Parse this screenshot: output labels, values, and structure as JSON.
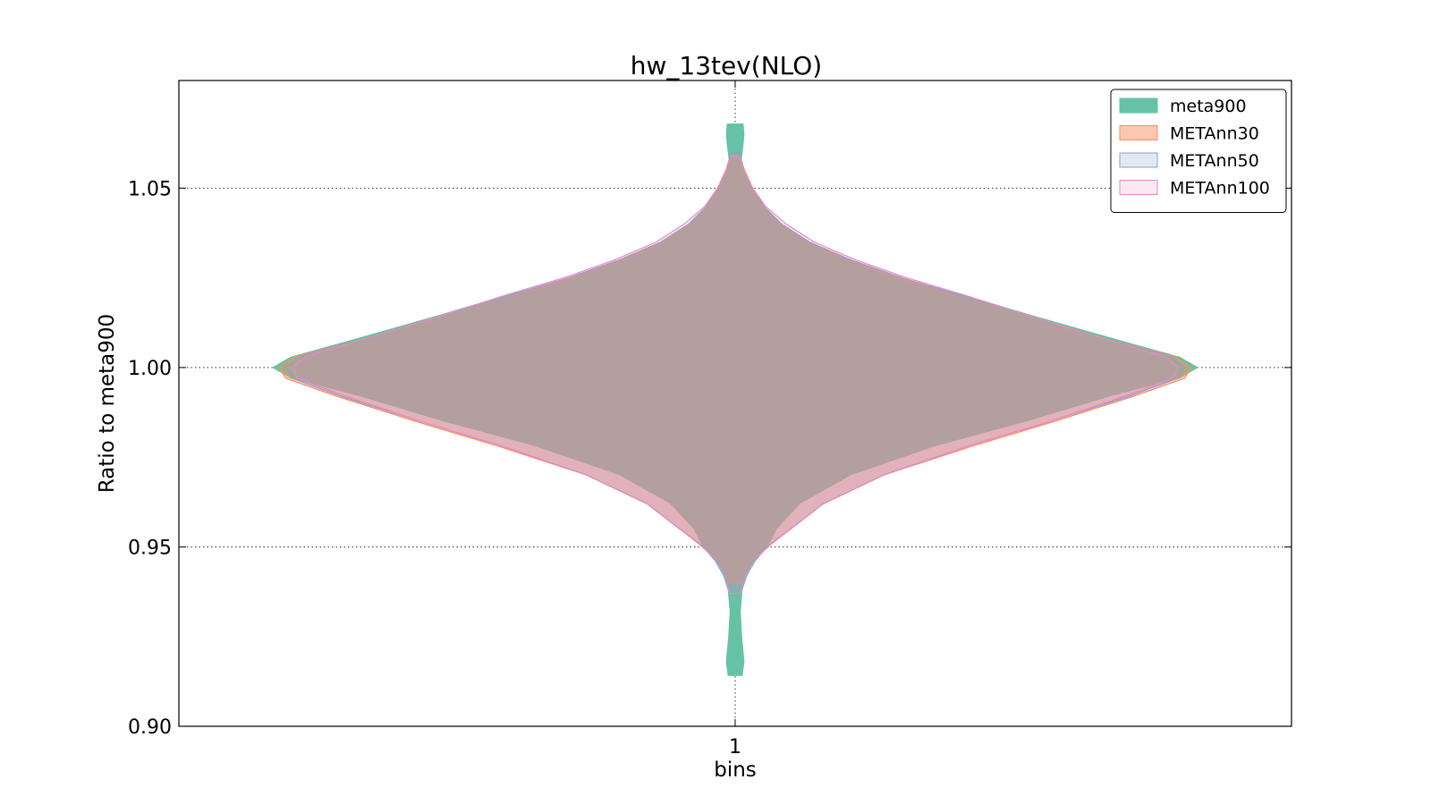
{
  "chart_data": {
    "type": "violin",
    "title": "hw_13tev(NLO)",
    "xlabel": "bins",
    "ylabel": "Ratio to meta900",
    "categories": [
      "1"
    ],
    "ylim": [
      0.9,
      1.08
    ],
    "yticks": [
      0.9,
      0.95,
      1.0,
      1.05
    ],
    "ytick_labels": [
      "0.90",
      "0.95",
      "1.00",
      "1.05"
    ],
    "grid": true,
    "legend_position": "top-right",
    "series": [
      {
        "name": "meta900",
        "color": "#66c2a5",
        "fill_opacity": 1.0,
        "y_min": 0.914,
        "y_max": 1.068,
        "profile": [
          [
            0.914,
            0.016
          ],
          [
            0.918,
            0.02
          ],
          [
            0.925,
            0.015
          ],
          [
            0.932,
            0.012
          ],
          [
            0.938,
            0.016
          ],
          [
            0.942,
            0.026
          ],
          [
            0.946,
            0.044
          ],
          [
            0.95,
            0.07
          ],
          [
            0.955,
            0.09
          ],
          [
            0.962,
            0.14
          ],
          [
            0.97,
            0.25
          ],
          [
            0.978,
            0.43
          ],
          [
            0.985,
            0.63
          ],
          [
            0.992,
            0.81
          ],
          [
            0.997,
            0.96
          ],
          [
            1.0,
            1.0
          ],
          [
            1.003,
            0.96
          ],
          [
            1.008,
            0.82
          ],
          [
            1.015,
            0.63
          ],
          [
            1.02,
            0.5
          ],
          [
            1.025,
            0.36
          ],
          [
            1.03,
            0.25
          ],
          [
            1.035,
            0.16
          ],
          [
            1.04,
            0.1
          ],
          [
            1.045,
            0.06
          ],
          [
            1.05,
            0.035
          ],
          [
            1.055,
            0.02
          ],
          [
            1.058,
            0.014
          ],
          [
            1.062,
            0.018
          ],
          [
            1.065,
            0.02
          ],
          [
            1.068,
            0.018
          ]
        ]
      },
      {
        "name": "METAnn30",
        "color": "#fc8d62",
        "fill_opacity": 0.5,
        "y_min": 0.94,
        "y_max": 1.059,
        "profile": [
          [
            0.94,
            0.015
          ],
          [
            0.944,
            0.025
          ],
          [
            0.948,
            0.05
          ],
          [
            0.952,
            0.09
          ],
          [
            0.956,
            0.13
          ],
          [
            0.962,
            0.19
          ],
          [
            0.97,
            0.32
          ],
          [
            0.978,
            0.51
          ],
          [
            0.985,
            0.69
          ],
          [
            0.992,
            0.86
          ],
          [
            0.997,
            0.97
          ],
          [
            1.0,
            0.985
          ],
          [
            1.003,
            0.95
          ],
          [
            1.008,
            0.8
          ],
          [
            1.015,
            0.62
          ],
          [
            1.02,
            0.49
          ],
          [
            1.025,
            0.35
          ],
          [
            1.03,
            0.24
          ],
          [
            1.035,
            0.16
          ],
          [
            1.04,
            0.1
          ],
          [
            1.045,
            0.06
          ],
          [
            1.05,
            0.035
          ],
          [
            1.055,
            0.018
          ],
          [
            1.059,
            0.008
          ]
        ]
      },
      {
        "name": "METAnn50",
        "color": "#8da0cb",
        "fill_opacity": 0.25,
        "y_min": 0.938,
        "y_max": 1.06,
        "profile": [
          [
            0.938,
            0.012
          ],
          [
            0.943,
            0.022
          ],
          [
            0.948,
            0.048
          ],
          [
            0.952,
            0.088
          ],
          [
            0.956,
            0.13
          ],
          [
            0.962,
            0.19
          ],
          [
            0.97,
            0.32
          ],
          [
            0.978,
            0.5
          ],
          [
            0.985,
            0.68
          ],
          [
            0.992,
            0.85
          ],
          [
            0.997,
            0.955
          ],
          [
            1.0,
            0.97
          ],
          [
            1.003,
            0.94
          ],
          [
            1.008,
            0.8
          ],
          [
            1.015,
            0.62
          ],
          [
            1.02,
            0.49
          ],
          [
            1.025,
            0.36
          ],
          [
            1.03,
            0.25
          ],
          [
            1.035,
            0.16
          ],
          [
            1.04,
            0.1
          ],
          [
            1.045,
            0.062
          ],
          [
            1.05,
            0.037
          ],
          [
            1.055,
            0.02
          ],
          [
            1.06,
            0.008
          ]
        ]
      },
      {
        "name": "METAnn100",
        "color": "#e78ac3",
        "fill_opacity": 0.2,
        "y_min": 0.937,
        "y_max": 1.059,
        "profile": [
          [
            0.937,
            0.012
          ],
          [
            0.942,
            0.022
          ],
          [
            0.947,
            0.046
          ],
          [
            0.952,
            0.088
          ],
          [
            0.956,
            0.13
          ],
          [
            0.962,
            0.19
          ],
          [
            0.97,
            0.32
          ],
          [
            0.978,
            0.5
          ],
          [
            0.985,
            0.68
          ],
          [
            0.992,
            0.84
          ],
          [
            0.997,
            0.945
          ],
          [
            1.0,
            0.955
          ],
          [
            1.003,
            0.93
          ],
          [
            1.008,
            0.8
          ],
          [
            1.015,
            0.62
          ],
          [
            1.02,
            0.5
          ],
          [
            1.025,
            0.37
          ],
          [
            1.03,
            0.26
          ],
          [
            1.035,
            0.17
          ],
          [
            1.04,
            0.11
          ],
          [
            1.045,
            0.065
          ],
          [
            1.05,
            0.038
          ],
          [
            1.055,
            0.02
          ],
          [
            1.059,
            0.008
          ]
        ]
      }
    ]
  }
}
